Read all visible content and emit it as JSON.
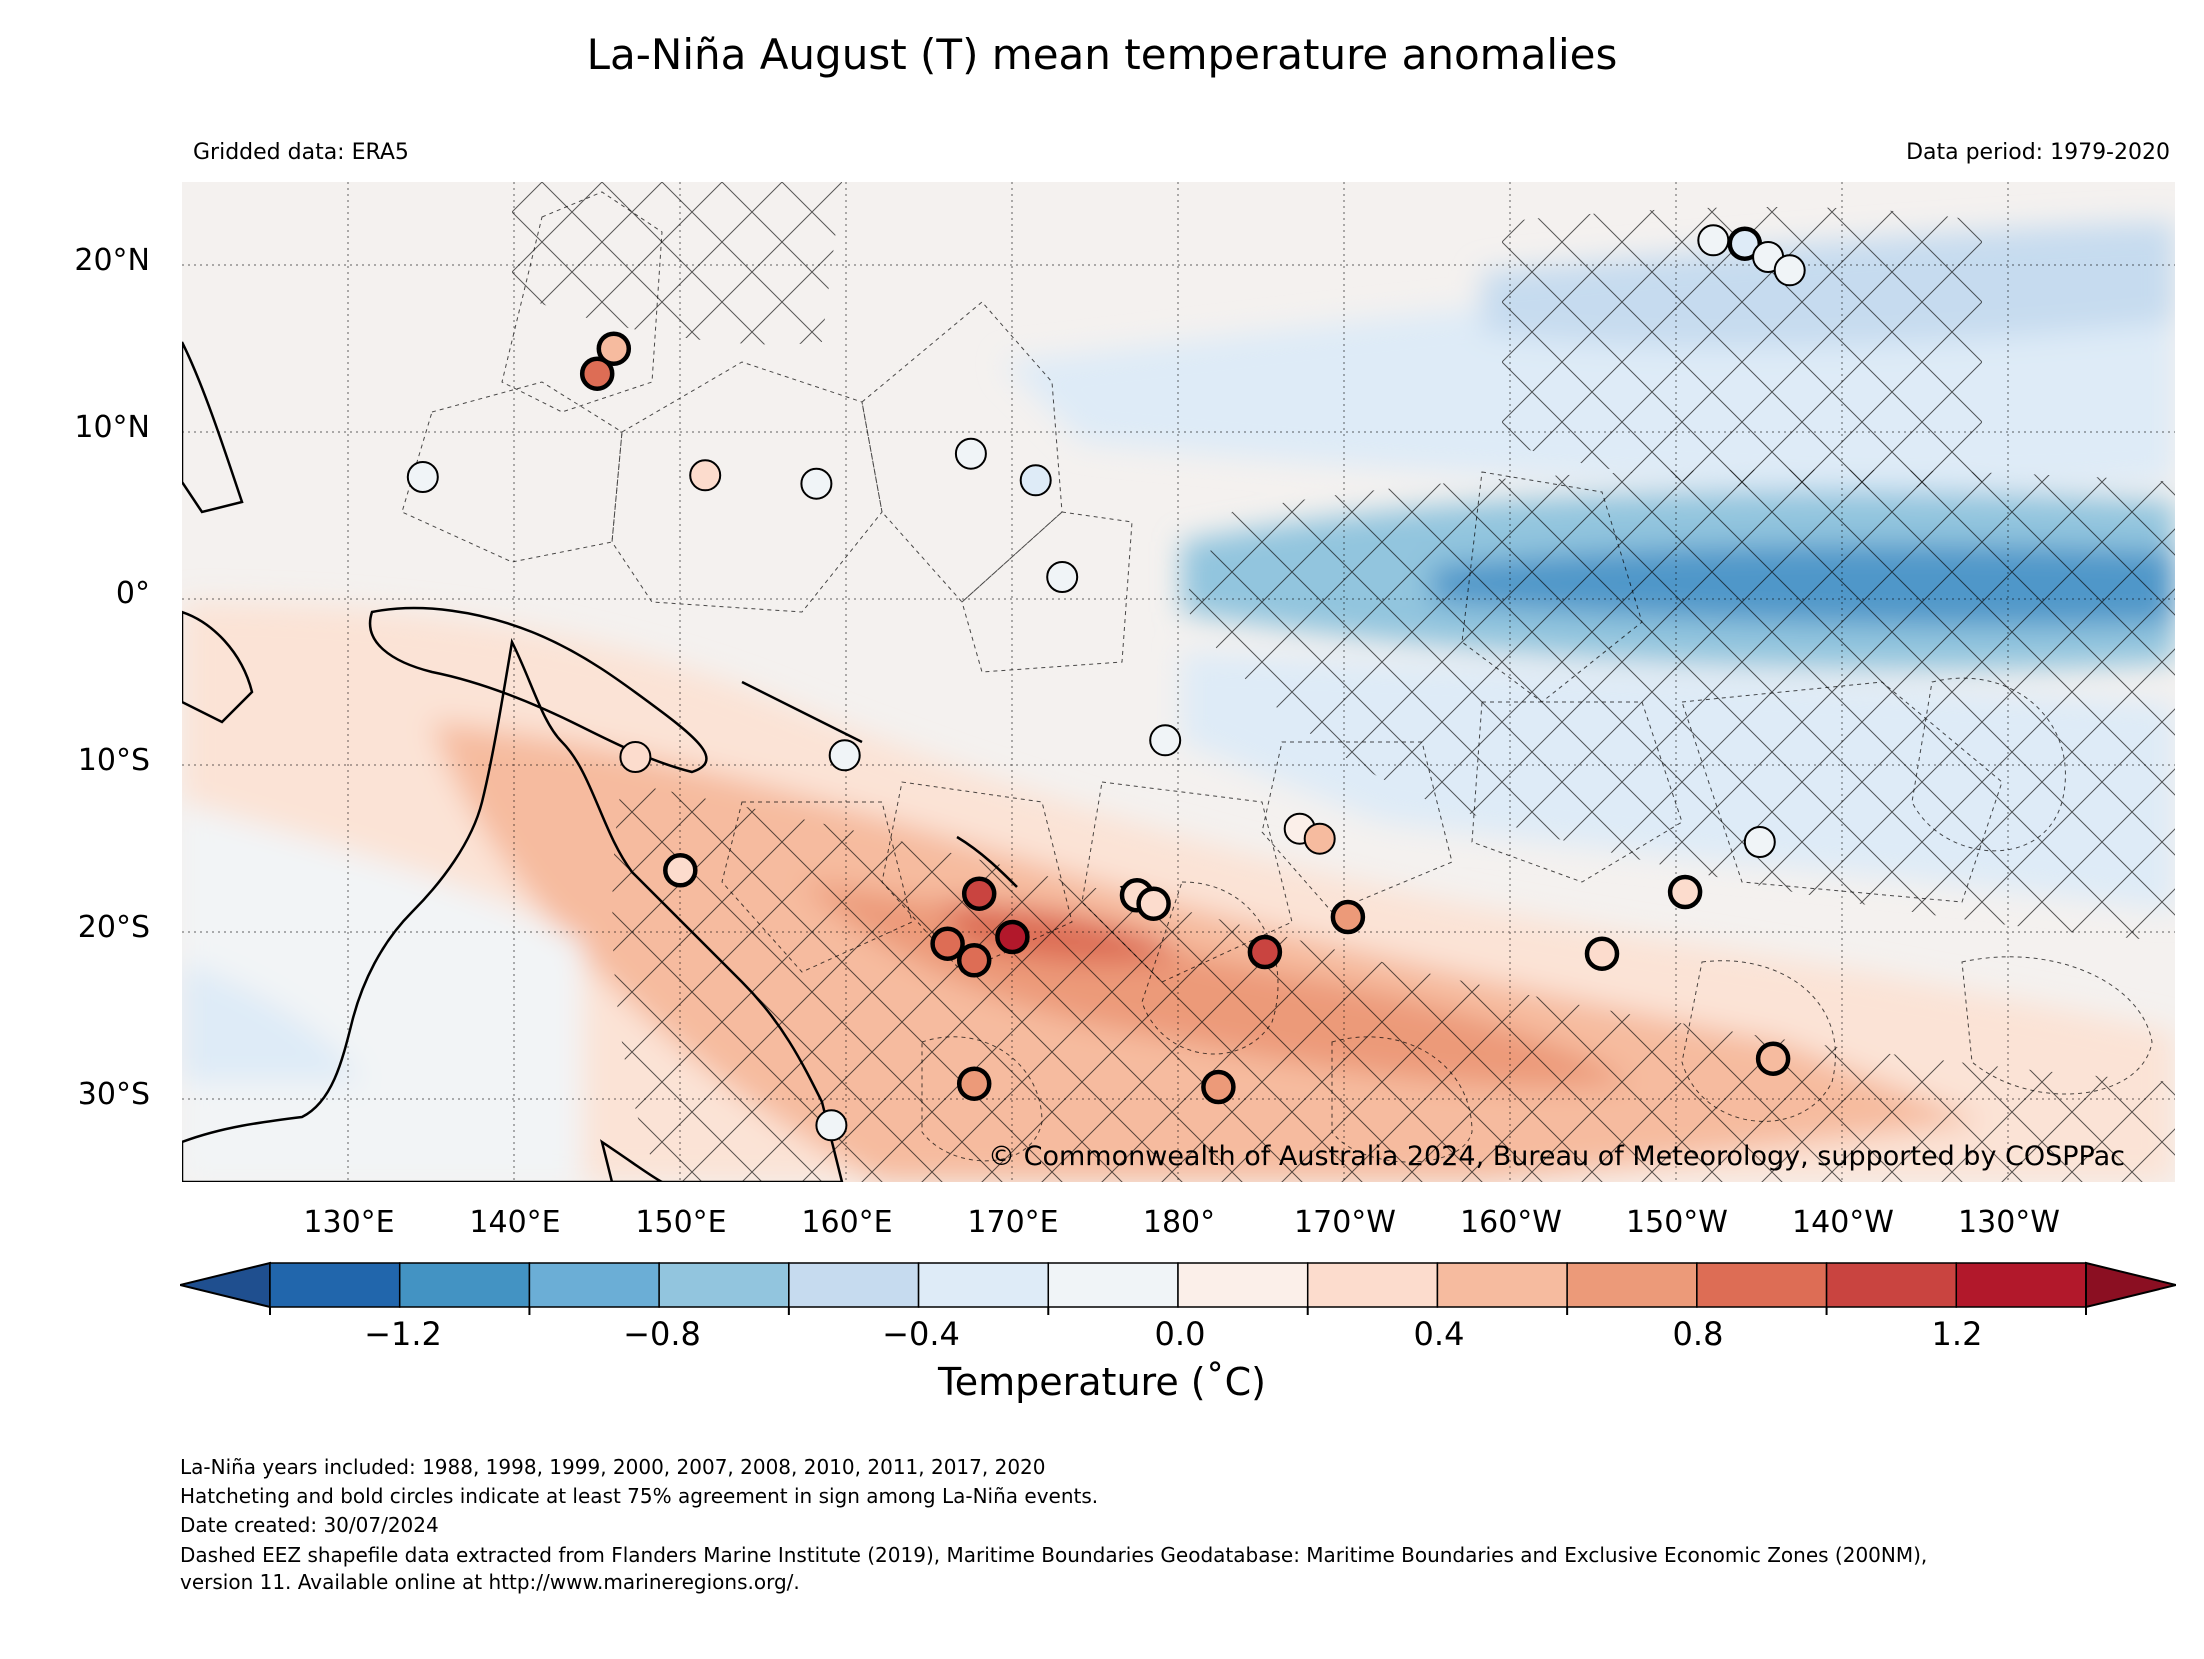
{
  "title": "La-Niña August (T) mean temperature anomalies",
  "gridded_data": "Gridded data: ERA5",
  "data_period": "Data period: 1979-2020",
  "copyright": "© Commonwealth of Australia 2024, Bureau of Meteorology, supported by COSPPac",
  "lat_labels": [
    "20°N",
    "10°N",
    "0°",
    "10°S",
    "20°S",
    "30°S"
  ],
  "lon_labels": [
    "130°E",
    "140°E",
    "150°E",
    "160°E",
    "170°E",
    "180°",
    "170°W",
    "160°W",
    "150°W",
    "140°W",
    "130°W"
  ],
  "colorbar": {
    "title": "Temperature (˚C)",
    "tick_labels": [
      "−1.2",
      "−0.8",
      "−0.4",
      "0.0",
      "0.4",
      "0.8",
      "1.2"
    ],
    "colors": [
      "#2166ac",
      "#4393c3",
      "#6baed6",
      "#92c5de",
      "#c6dbef",
      "#deebf7",
      "#f0f4f7",
      "#fbefe9",
      "#fcdccd",
      "#f6bb9f",
      "#ec9a79",
      "#dd6d55",
      "#c94440",
      "#b2182b"
    ],
    "under_color": "#1f4f8f",
    "over_color": "#8b0f22"
  },
  "notes": {
    "years": "La-Niña years included: 1988, 1998, 1999, 2000, 2007, 2008, 2010, 2011, 2017, 2020",
    "hatching": "Hatcheting and bold circles indicate at least 75% agreement in sign among La-Niña events.",
    "date": "Date created: 30/07/2024",
    "eez_1": "Dashed EEZ shapefile data extracted from Flanders Marine Institute (2019), Maritime Boundaries Geodatabase: Maritime Boundaries and Exclusive Economic Zones (200NM),",
    "eez_2": "version 11. Available online at http://www.marineregions.org/."
  },
  "map_extent": {
    "lon_min": 120,
    "lon_max": 240,
    "lat_min": -35,
    "lat_max": 25
  },
  "stations": [
    {
      "lon": 146,
      "lat": 15,
      "value": 0.5,
      "bold": true
    },
    {
      "lon": 145,
      "lat": 13.5,
      "value": 0.9,
      "bold": true
    },
    {
      "lon": 134.5,
      "lat": 7.3,
      "value": 0.0,
      "bold": false
    },
    {
      "lon": 151.5,
      "lat": 7.4,
      "value": 0.4,
      "bold": false
    },
    {
      "lon": 158.2,
      "lat": 6.9,
      "value": 0.0,
      "bold": false
    },
    {
      "lon": 167.5,
      "lat": 8.7,
      "value": 0.0,
      "bold": false
    },
    {
      "lon": 171.4,
      "lat": 7.1,
      "value": -0.3,
      "bold": false
    },
    {
      "lon": 173,
      "lat": 1.3,
      "value": 0.0,
      "bold": false
    },
    {
      "lon": 212.2,
      "lat": 21.5,
      "value": 0.0,
      "bold": false
    },
    {
      "lon": 214.1,
      "lat": 21.3,
      "value": -0.2,
      "bold": true
    },
    {
      "lon": 215.5,
      "lat": 20.5,
      "value": 0.0,
      "bold": false
    },
    {
      "lon": 216.8,
      "lat": 19.7,
      "value": 0.0,
      "bold": false
    },
    {
      "lon": 147.3,
      "lat": -9.5,
      "value": 0.4,
      "bold": false
    },
    {
      "lon": 159.9,
      "lat": -9.4,
      "value": 0.0,
      "bold": false
    },
    {
      "lon": 179.2,
      "lat": -8.5,
      "value": 0.0,
      "bold": false
    },
    {
      "lon": 150,
      "lat": -16.3,
      "value": 0.4,
      "bold": true
    },
    {
      "lon": 168,
      "lat": -17.7,
      "value": 1.2,
      "bold": true
    },
    {
      "lon": 166.1,
      "lat": -20.7,
      "value": 0.9,
      "bold": true
    },
    {
      "lon": 167.7,
      "lat": -21.7,
      "value": 1.0,
      "bold": true
    },
    {
      "lon": 170,
      "lat": -20.3,
      "value": 1.3,
      "bold": true
    },
    {
      "lon": 177.5,
      "lat": -17.8,
      "value": 0.4,
      "bold": true
    },
    {
      "lon": 178.5,
      "lat": -18.3,
      "value": 0.4,
      "bold": true
    },
    {
      "lon": 185.2,
      "lat": -21.2,
      "value": 1.2,
      "bold": true
    },
    {
      "lon": 187.3,
      "lat": -13.8,
      "value": 0.2,
      "bold": false
    },
    {
      "lon": 188.5,
      "lat": -14.4,
      "value": 0.5,
      "bold": false
    },
    {
      "lon": 190.2,
      "lat": -19.1,
      "value": 0.6,
      "bold": true
    },
    {
      "lon": 205.5,
      "lat": -21.3,
      "value": 0.4,
      "bold": true
    },
    {
      "lon": 210.5,
      "lat": -17.6,
      "value": 0.3,
      "bold": true
    },
    {
      "lon": 215,
      "lat": -14.6,
      "value": 0.0,
      "bold": false
    },
    {
      "lon": 167.7,
      "lat": -29.1,
      "value": 0.6,
      "bold": true
    },
    {
      "lon": 159.1,
      "lat": -31.6,
      "value": 0.0,
      "bold": false
    },
    {
      "lon": 182.4,
      "lat": -29.3,
      "value": 0.6,
      "bold": true
    },
    {
      "lon": 215.8,
      "lat": -27.6,
      "value": 0.5,
      "bold": true
    }
  ]
}
